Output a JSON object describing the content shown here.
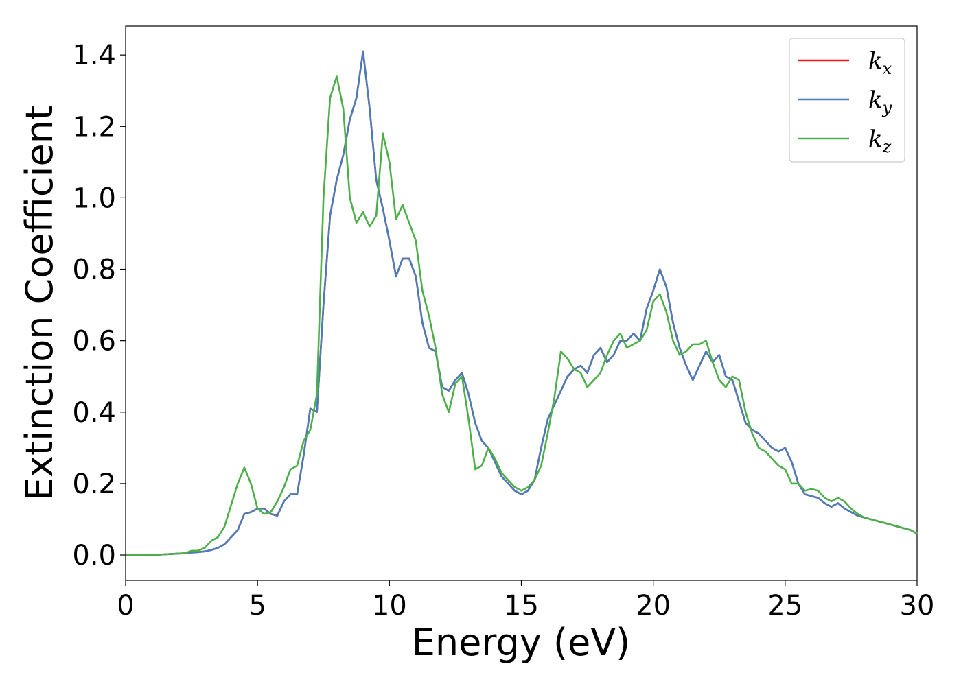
{
  "chart_data": {
    "type": "line",
    "xlabel": "Energy (eV)",
    "ylabel": "Extinction Coefficient",
    "x": [
      0,
      0.25,
      0.5,
      0.75,
      1,
      1.25,
      1.5,
      1.75,
      2,
      2.25,
      2.5,
      2.75,
      3,
      3.25,
      3.5,
      3.75,
      4,
      4.25,
      4.5,
      4.75,
      5,
      5.25,
      5.5,
      5.75,
      6,
      6.25,
      6.5,
      6.75,
      7,
      7.25,
      7.5,
      7.75,
      8,
      8.25,
      8.5,
      8.75,
      9,
      9.25,
      9.5,
      9.75,
      10,
      10.25,
      10.5,
      10.75,
      11,
      11.25,
      11.5,
      11.75,
      12,
      12.25,
      12.5,
      12.75,
      13,
      13.25,
      13.5,
      13.75,
      14,
      14.25,
      14.5,
      14.75,
      15,
      15.25,
      15.5,
      15.75,
      16,
      16.25,
      16.5,
      16.75,
      17,
      17.25,
      17.5,
      17.75,
      18,
      18.25,
      18.5,
      18.75,
      19,
      19.25,
      19.5,
      19.75,
      20,
      20.25,
      20.5,
      20.75,
      21,
      21.25,
      21.5,
      21.75,
      22,
      22.25,
      22.5,
      22.75,
      23,
      23.25,
      23.5,
      23.75,
      24,
      24.25,
      24.5,
      24.75,
      25,
      25.25,
      25.5,
      25.75,
      26,
      26.25,
      26.5,
      26.75,
      27,
      27.25,
      27.5,
      27.75,
      28,
      28.25,
      28.5,
      28.75,
      29,
      29.25,
      29.5,
      29.75,
      30
    ],
    "series": [
      {
        "name": "kx",
        "color": "#e41a1c",
        "values": [
          0,
          0,
          0,
          0,
          0.001,
          0.001,
          0.002,
          0.003,
          0.004,
          0.005,
          0.007,
          0.008,
          0.01,
          0.014,
          0.02,
          0.03,
          0.05,
          0.07,
          0.115,
          0.12,
          0.13,
          0.13,
          0.115,
          0.11,
          0.15,
          0.17,
          0.17,
          0.28,
          0.41,
          0.4,
          0.7,
          0.95,
          1.05,
          1.12,
          1.22,
          1.28,
          1.41,
          1.25,
          1.05,
          0.97,
          0.88,
          0.78,
          0.83,
          0.83,
          0.78,
          0.65,
          0.58,
          0.57,
          0.47,
          0.46,
          0.49,
          0.51,
          0.45,
          0.37,
          0.32,
          0.3,
          0.26,
          0.22,
          0.2,
          0.18,
          0.17,
          0.18,
          0.21,
          0.3,
          0.38,
          0.42,
          0.46,
          0.5,
          0.52,
          0.53,
          0.51,
          0.56,
          0.58,
          0.54,
          0.56,
          0.6,
          0.6,
          0.62,
          0.6,
          0.69,
          0.74,
          0.8,
          0.75,
          0.65,
          0.58,
          0.53,
          0.49,
          0.53,
          0.57,
          0.54,
          0.56,
          0.5,
          0.49,
          0.43,
          0.37,
          0.35,
          0.34,
          0.32,
          0.3,
          0.29,
          0.3,
          0.26,
          0.2,
          0.17,
          0.165,
          0.16,
          0.145,
          0.135,
          0.145,
          0.13,
          0.12,
          0.11,
          0.105,
          0.1,
          0.095,
          0.09,
          0.085,
          0.08,
          0.075,
          0.07,
          0.06
        ]
      },
      {
        "name": "ky",
        "color": "#4a7db8",
        "values": [
          0,
          0,
          0,
          0,
          0.001,
          0.001,
          0.002,
          0.003,
          0.004,
          0.005,
          0.007,
          0.008,
          0.01,
          0.014,
          0.02,
          0.03,
          0.05,
          0.07,
          0.115,
          0.12,
          0.13,
          0.13,
          0.115,
          0.11,
          0.15,
          0.17,
          0.17,
          0.28,
          0.41,
          0.4,
          0.7,
          0.95,
          1.05,
          1.12,
          1.22,
          1.28,
          1.41,
          1.25,
          1.05,
          0.97,
          0.88,
          0.78,
          0.83,
          0.83,
          0.78,
          0.65,
          0.58,
          0.57,
          0.47,
          0.46,
          0.49,
          0.51,
          0.45,
          0.37,
          0.32,
          0.3,
          0.26,
          0.22,
          0.2,
          0.18,
          0.17,
          0.18,
          0.21,
          0.3,
          0.38,
          0.42,
          0.46,
          0.5,
          0.52,
          0.53,
          0.51,
          0.56,
          0.58,
          0.54,
          0.56,
          0.6,
          0.6,
          0.62,
          0.6,
          0.69,
          0.74,
          0.8,
          0.75,
          0.65,
          0.58,
          0.53,
          0.49,
          0.53,
          0.57,
          0.54,
          0.56,
          0.5,
          0.49,
          0.43,
          0.37,
          0.35,
          0.34,
          0.32,
          0.3,
          0.29,
          0.3,
          0.26,
          0.2,
          0.17,
          0.165,
          0.16,
          0.145,
          0.135,
          0.145,
          0.13,
          0.12,
          0.11,
          0.105,
          0.1,
          0.095,
          0.09,
          0.085,
          0.08,
          0.075,
          0.07,
          0.06
        ]
      },
      {
        "name": "kz",
        "color": "#4daf4a",
        "values": [
          0,
          0,
          0,
          0,
          0.001,
          0.001,
          0.002,
          0.003,
          0.004,
          0.005,
          0.012,
          0.012,
          0.02,
          0.04,
          0.05,
          0.08,
          0.14,
          0.2,
          0.245,
          0.2,
          0.13,
          0.115,
          0.12,
          0.15,
          0.19,
          0.24,
          0.25,
          0.32,
          0.35,
          0.45,
          1.0,
          1.28,
          1.34,
          1.25,
          1.0,
          0.93,
          0.96,
          0.92,
          0.95,
          1.18,
          1.1,
          0.94,
          0.98,
          0.93,
          0.88,
          0.74,
          0.67,
          0.58,
          0.45,
          0.4,
          0.48,
          0.5,
          0.38,
          0.24,
          0.25,
          0.3,
          0.27,
          0.23,
          0.21,
          0.19,
          0.18,
          0.19,
          0.21,
          0.25,
          0.34,
          0.44,
          0.57,
          0.55,
          0.52,
          0.51,
          0.47,
          0.49,
          0.51,
          0.56,
          0.6,
          0.62,
          0.58,
          0.59,
          0.6,
          0.63,
          0.71,
          0.73,
          0.68,
          0.6,
          0.56,
          0.57,
          0.59,
          0.59,
          0.6,
          0.54,
          0.49,
          0.47,
          0.5,
          0.49,
          0.4,
          0.34,
          0.3,
          0.29,
          0.27,
          0.25,
          0.24,
          0.2,
          0.2,
          0.18,
          0.185,
          0.18,
          0.16,
          0.15,
          0.16,
          0.15,
          0.13,
          0.115,
          0.105,
          0.1,
          0.095,
          0.09,
          0.085,
          0.08,
          0.075,
          0.07,
          0.06
        ]
      }
    ],
    "xlim": [
      0,
      30
    ],
    "xticks": [
      0,
      5,
      10,
      15,
      20,
      25,
      30
    ],
    "ylim": [
      -0.071,
      1.481
    ],
    "yticks": [
      {
        "value": 0,
        "label": "0.0"
      },
      0.2,
      0.4,
      0.6,
      0.8,
      {
        "value": 1,
        "label": "1.0"
      },
      1.2,
      1.4
    ],
    "legend": "upper right",
    "grid": false
  }
}
